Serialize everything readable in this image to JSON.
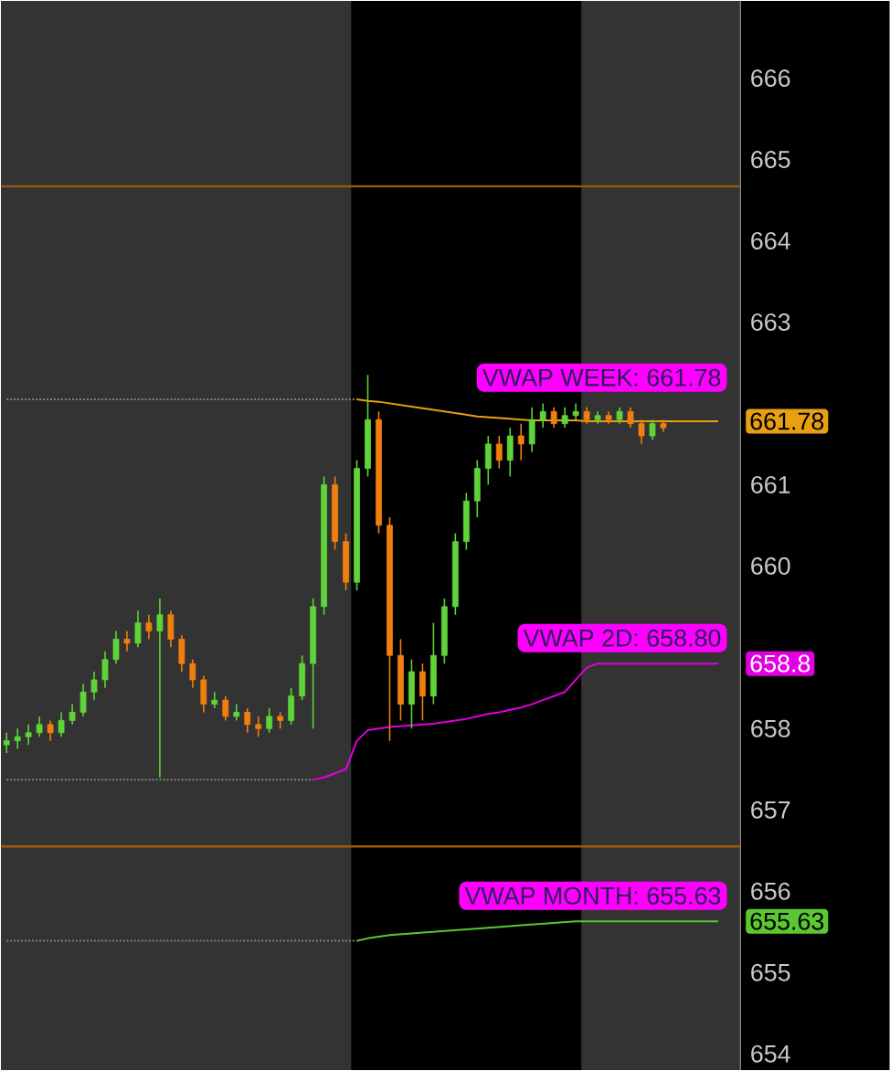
{
  "chart_data": {
    "type": "candlestick",
    "categories": [
      null,
      null,
      null,
      null,
      null,
      null,
      null,
      null,
      null,
      null,
      null,
      null,
      null,
      null,
      null,
      null,
      null,
      null,
      null,
      null,
      null,
      null,
      null,
      null,
      null,
      null,
      null,
      null,
      null,
      null,
      null,
      null,
      null,
      null,
      null,
      null,
      null,
      null,
      null,
      null,
      null,
      null,
      null,
      null,
      null,
      null,
      null,
      null,
      null,
      null,
      null,
      null,
      null,
      null,
      null,
      null,
      null,
      null,
      null,
      null,
      null,
      null,
      null,
      null,
      null,
      null
    ],
    "ohlc": [
      [
        657.8,
        657.95,
        657.7,
        657.85
      ],
      [
        657.85,
        658.0,
        657.75,
        657.9
      ],
      [
        657.9,
        658.05,
        657.8,
        657.95
      ],
      [
        657.95,
        658.15,
        657.9,
        658.05
      ],
      [
        658.05,
        658.1,
        657.85,
        657.95
      ],
      [
        657.95,
        658.2,
        657.9,
        658.1
      ],
      [
        658.1,
        658.3,
        658.05,
        658.2
      ],
      [
        658.2,
        658.55,
        658.15,
        658.45
      ],
      [
        658.45,
        658.7,
        658.35,
        658.6
      ],
      [
        658.6,
        658.95,
        658.5,
        658.85
      ],
      [
        658.85,
        659.2,
        658.8,
        659.1
      ],
      [
        659.1,
        659.2,
        658.95,
        659.05
      ],
      [
        659.05,
        659.45,
        659.0,
        659.3
      ],
      [
        659.3,
        659.4,
        659.1,
        659.2
      ],
      [
        659.2,
        659.6,
        657.4,
        659.4
      ],
      [
        659.4,
        659.45,
        659.0,
        659.1
      ],
      [
        659.1,
        659.15,
        658.7,
        658.8
      ],
      [
        658.8,
        658.85,
        658.5,
        658.6
      ],
      [
        658.6,
        658.65,
        658.2,
        658.3
      ],
      [
        658.3,
        658.45,
        658.25,
        658.35
      ],
      [
        658.35,
        658.4,
        658.1,
        658.15
      ],
      [
        658.15,
        658.3,
        658.1,
        658.2
      ],
      [
        658.2,
        658.25,
        657.95,
        658.05
      ],
      [
        658.05,
        658.15,
        657.9,
        658.0
      ],
      [
        658.0,
        658.25,
        657.95,
        658.15
      ],
      [
        658.15,
        658.2,
        658.0,
        658.1
      ],
      [
        658.1,
        658.5,
        658.05,
        658.4
      ],
      [
        658.4,
        658.9,
        658.35,
        658.8
      ],
      [
        658.8,
        659.6,
        658.0,
        659.5
      ],
      [
        659.5,
        661.1,
        659.4,
        661.0
      ],
      [
        661.0,
        661.1,
        660.2,
        660.3
      ],
      [
        660.3,
        660.4,
        659.7,
        659.8
      ],
      [
        659.8,
        661.3,
        659.7,
        661.2
      ],
      [
        661.2,
        662.35,
        661.1,
        661.8
      ],
      [
        661.8,
        661.9,
        660.4,
        660.5
      ],
      [
        660.5,
        660.6,
        657.85,
        658.9
      ],
      [
        658.9,
        659.1,
        658.1,
        658.3
      ],
      [
        658.3,
        658.85,
        658.0,
        658.7
      ],
      [
        658.7,
        658.8,
        658.1,
        658.4
      ],
      [
        658.4,
        659.3,
        658.3,
        658.9
      ],
      [
        658.9,
        659.6,
        658.8,
        659.5
      ],
      [
        659.5,
        660.4,
        659.4,
        660.3
      ],
      [
        660.3,
        660.9,
        660.2,
        660.8
      ],
      [
        660.8,
        661.3,
        660.6,
        661.2
      ],
      [
        661.2,
        661.6,
        661.0,
        661.5
      ],
      [
        661.5,
        661.6,
        661.2,
        661.3
      ],
      [
        661.3,
        661.7,
        661.1,
        661.6
      ],
      [
        661.6,
        661.75,
        661.3,
        661.5
      ],
      [
        661.5,
        661.95,
        661.4,
        661.8
      ],
      [
        661.8,
        662.0,
        661.7,
        661.9
      ],
      [
        661.9,
        661.95,
        661.7,
        661.75
      ],
      [
        661.75,
        661.95,
        661.7,
        661.85
      ],
      [
        661.85,
        662.0,
        661.8,
        661.9
      ],
      [
        661.9,
        661.95,
        661.75,
        661.8
      ],
      [
        661.8,
        661.9,
        661.75,
        661.85
      ],
      [
        661.85,
        661.9,
        661.75,
        661.8
      ],
      [
        661.8,
        661.95,
        661.75,
        661.9
      ],
      [
        661.9,
        661.95,
        661.7,
        661.75
      ],
      [
        661.75,
        661.8,
        661.5,
        661.6
      ],
      [
        661.6,
        661.8,
        661.55,
        661.75
      ],
      [
        661.75,
        661.8,
        661.65,
        661.7
      ],
      null,
      null,
      null,
      null,
      null
    ],
    "series": [
      {
        "type": "line",
        "color": "#808080",
        "line_style": "dotted",
        "values": [
          662.05,
          662.05,
          662.05,
          662.05,
          662.05,
          662.05,
          662.05,
          662.05,
          662.05,
          662.05,
          662.05,
          662.05,
          662.05,
          662.05,
          662.05,
          662.05,
          662.05,
          662.05,
          662.05,
          662.05,
          662.05,
          662.05,
          662.05,
          662.05,
          662.05,
          662.05,
          662.05,
          662.05,
          662.05,
          662.05,
          662.05,
          662.05,
          662.05,
          null,
          null,
          null,
          null,
          null,
          null,
          null,
          null,
          null,
          null,
          null,
          null,
          null,
          null,
          null,
          null,
          null,
          null,
          null,
          null,
          null,
          null,
          null,
          null,
          null,
          null,
          null,
          null,
          null,
          null,
          null,
          null,
          null
        ]
      },
      {
        "type": "line",
        "color": "#808080",
        "line_style": "dotted",
        "values": [
          657.37,
          657.37,
          657.37,
          657.37,
          657.37,
          657.37,
          657.37,
          657.37,
          657.37,
          657.37,
          657.37,
          657.37,
          657.37,
          657.37,
          657.37,
          657.37,
          657.37,
          657.37,
          657.37,
          657.37,
          657.37,
          657.37,
          657.37,
          657.37,
          657.37,
          657.37,
          657.37,
          657.37,
          657.37,
          null,
          null,
          null,
          null,
          null,
          null,
          null,
          null,
          null,
          null,
          null,
          null,
          null,
          null,
          null,
          null,
          null,
          null,
          null,
          null,
          null,
          null,
          null,
          null,
          null,
          null,
          null,
          null,
          null,
          null,
          null,
          null,
          null,
          null,
          null,
          null,
          null
        ]
      },
      {
        "type": "line",
        "color": "#808080",
        "line_style": "dotted",
        "values": [
          655.39,
          655.39,
          655.39,
          655.39,
          655.39,
          655.39,
          655.39,
          655.39,
          655.39,
          655.39,
          655.39,
          655.39,
          655.39,
          655.39,
          655.39,
          655.39,
          655.39,
          655.39,
          655.39,
          655.39,
          655.39,
          655.39,
          655.39,
          655.39,
          655.39,
          655.39,
          655.39,
          655.39,
          655.39,
          655.39,
          655.39,
          655.39,
          655.39,
          null,
          null,
          null,
          null,
          null,
          null,
          null,
          null,
          null,
          null,
          null,
          null,
          null,
          null,
          null,
          null,
          null,
          null,
          null,
          null,
          null,
          null,
          null,
          null,
          null,
          null,
          null,
          null,
          null,
          null,
          null,
          null,
          null
        ]
      },
      {
        "type": "line",
        "name": "VWAP WEEK: 661.78",
        "color": "#e8a010",
        "values": [
          null,
          null,
          null,
          null,
          null,
          null,
          null,
          null,
          null,
          null,
          null,
          null,
          null,
          null,
          null,
          null,
          null,
          null,
          null,
          null,
          null,
          null,
          null,
          null,
          null,
          null,
          null,
          null,
          null,
          null,
          null,
          null,
          662.05,
          662.03,
          662.02,
          662.0,
          661.98,
          661.96,
          661.94,
          661.92,
          661.9,
          661.88,
          661.86,
          661.84,
          661.83,
          661.82,
          661.81,
          661.8,
          661.79,
          661.79,
          661.79,
          661.79,
          661.79,
          661.78,
          661.78,
          661.78,
          661.78,
          661.78,
          661.78,
          661.78,
          661.78,
          661.78,
          661.78,
          661.78,
          661.78,
          661.78
        ]
      },
      {
        "type": "line",
        "name": "VWAP 2D: 658.80",
        "color": "#e000e0",
        "values": [
          null,
          null,
          null,
          null,
          null,
          null,
          null,
          null,
          null,
          null,
          null,
          null,
          null,
          null,
          null,
          null,
          null,
          null,
          null,
          null,
          null,
          null,
          null,
          null,
          null,
          null,
          null,
          null,
          657.37,
          657.4,
          657.45,
          657.5,
          657.85,
          657.98,
          658.0,
          658.02,
          658.03,
          658.04,
          658.05,
          658.06,
          658.08,
          658.1,
          658.12,
          658.15,
          658.18,
          658.2,
          658.23,
          658.26,
          658.3,
          658.35,
          658.4,
          658.45,
          658.6,
          658.75,
          658.8,
          658.8,
          658.8,
          658.8,
          658.8,
          658.8,
          658.8,
          658.8,
          658.8,
          658.8,
          658.8,
          658.8
        ]
      },
      {
        "type": "line",
        "name": "VWAP MONTH: 655.63",
        "color": "#5ac832",
        "values": [
          null,
          null,
          null,
          null,
          null,
          null,
          null,
          null,
          null,
          null,
          null,
          null,
          null,
          null,
          null,
          null,
          null,
          null,
          null,
          null,
          null,
          null,
          null,
          null,
          null,
          null,
          null,
          null,
          null,
          null,
          null,
          null,
          655.39,
          655.42,
          655.44,
          655.46,
          655.47,
          655.48,
          655.49,
          655.5,
          655.51,
          655.52,
          655.53,
          655.54,
          655.55,
          655.56,
          655.57,
          655.58,
          655.59,
          655.6,
          655.61,
          655.62,
          655.63,
          655.63,
          655.63,
          655.63,
          655.63,
          655.63,
          655.63,
          655.63,
          655.63,
          655.63,
          655.63,
          655.63,
          655.63,
          655.63
        ]
      }
    ],
    "annotations": [
      "661.78",
      "658.8",
      "655.63"
    ],
    "ref_lines": [
      {
        "axis": "y",
        "value": 664.67,
        "color": "#9a5c08"
      },
      {
        "axis": "y",
        "value": 656.55,
        "color": "#9a5c08"
      }
    ],
    "ylim": [
      653.8,
      666.95
    ],
    "yticks": [
      654,
      655,
      656,
      657,
      658,
      660,
      661,
      663,
      664,
      665,
      666
    ]
  }
}
